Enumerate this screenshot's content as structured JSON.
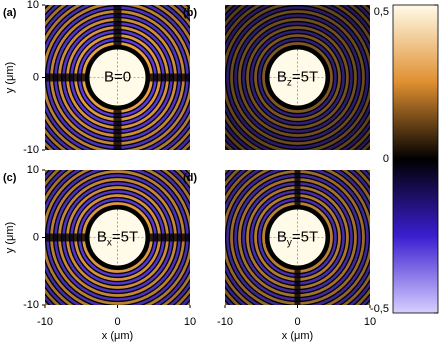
{
  "chart_data": [
    {
      "type": "heatmap",
      "panel_label": "(a)",
      "annotation": {
        "base": "B",
        "rest": "=0"
      },
      "xlim": [
        -10,
        10
      ],
      "ylim": [
        -10,
        10
      ],
      "yticks": [
        -10,
        0,
        10
      ],
      "ylabel": "y (μm)"
    },
    {
      "type": "heatmap",
      "panel_label": "(b)",
      "annotation": {
        "base": "B",
        "sub": "z",
        "rest": "=5T"
      },
      "xlim": [
        -10,
        10
      ],
      "ylim": [
        -10,
        10
      ]
    },
    {
      "type": "heatmap",
      "panel_label": "(c)",
      "annotation": {
        "base": "B",
        "sub": "x",
        "rest": "=5T"
      },
      "xlim": [
        -10,
        10
      ],
      "ylim": [
        -10,
        10
      ],
      "xticks": [
        -10,
        0,
        10
      ],
      "yticks": [
        -10,
        0,
        10
      ],
      "xlabel": "x (μm)",
      "ylabel": "y (μm)"
    },
    {
      "type": "heatmap",
      "panel_label": "(d)",
      "annotation": {
        "base": "B",
        "sub": "y",
        "rest": "=5T"
      },
      "xlim": [
        -10,
        10
      ],
      "ylim": [
        -10,
        10
      ],
      "xticks": [
        -10,
        0,
        10
      ],
      "xlabel": "x (μm)"
    },
    {
      "type": "colorbar",
      "lim": [
        -0.5,
        0.5
      ],
      "ticks": [
        {
          "value": -0.5,
          "label": "-0,5"
        },
        0,
        {
          "value": 0.5,
          "label": "0,5"
        }
      ],
      "colors": [
        "#d8d0ff",
        "#3a1ed0",
        "#000000",
        "#e09030",
        "#fffbe8"
      ]
    }
  ]
}
